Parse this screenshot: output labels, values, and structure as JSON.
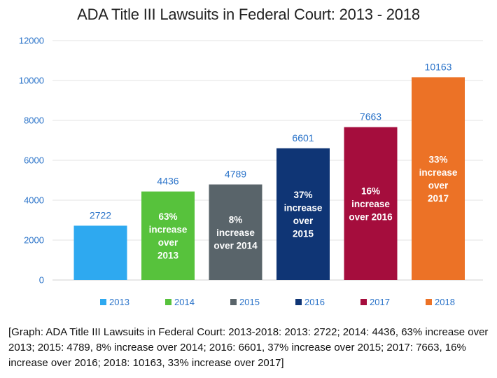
{
  "chart_data": {
    "type": "bar",
    "title": "ADA Title III Lawsuits in Federal Court: 2013 - 2018",
    "categories": [
      "2013",
      "2014",
      "2015",
      "2016",
      "2017",
      "2018"
    ],
    "values": [
      2722,
      4436,
      4789,
      6601,
      7663,
      10163
    ],
    "colors": [
      "#2ea9f0",
      "#57c23c",
      "#59646a",
      "#0f3575",
      "#a50d3d",
      "#ec7226"
    ],
    "data_labels": [
      "2722",
      "4436",
      "4789",
      "6601",
      "7663",
      "10163"
    ],
    "bar_annotations": [
      "",
      "63%\nincrease\nover\n2013",
      "8%\nincrease\nover 2014",
      "37%\nincrease\nover\n2015",
      "16%\nincrease\nover 2016",
      "33%\nincrease\nover\n2017"
    ],
    "legend": [
      "2013",
      "2014",
      "2015",
      "2016",
      "2017",
      "2018"
    ],
    "legend_position": "bottom",
    "ylim": [
      0,
      12000
    ],
    "yticks": [
      "0",
      "2000",
      "4000",
      "6000",
      "8000",
      "10000",
      "12000"
    ],
    "grid": true,
    "xlabel": "",
    "ylabel": ""
  },
  "caption": "[Graph: ADA Title III Lawsuits in Federal Court: 2013-2018: 2013: 2722; 2014: 4436, 63% increase over 2013; 2015: 4789, 8% increase over 2014; 2016: 6601, 37% increase over 2015; 2017: 7663, 16% increase over 2016; 2018: 10163, 33% increase over 2017]"
}
